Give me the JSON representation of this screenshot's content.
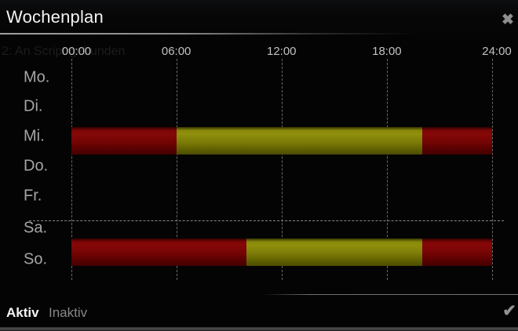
{
  "window": {
    "title": "Wochenplan",
    "close_icon": "✖"
  },
  "watermark_text": "2: An Script gebunden",
  "chart_data": {
    "type": "timeline",
    "title": "Wochenplan",
    "x_axis": {
      "tick_labels": [
        "00:00",
        "06:00",
        "12:00",
        "18:00",
        "24:00"
      ],
      "range_minutes": [
        0,
        1440
      ],
      "grid": "dashed-vertical"
    },
    "day_labels": [
      "Mo.",
      "Di.",
      "Mi.",
      "Do.",
      "Fr.",
      "Sa.",
      "So."
    ],
    "weekend_divider_after_day": "Fr.",
    "colors": {
      "red": "#860808",
      "yellow": "#90900c"
    },
    "bars": [
      {
        "day": "Mi.",
        "day_index": 2,
        "segments": [
          {
            "start": "00:00",
            "end": "06:00",
            "color": "red"
          },
          {
            "start": "06:00",
            "end": "20:00",
            "color": "yellow"
          },
          {
            "start": "20:00",
            "end": "24:00",
            "color": "red"
          }
        ]
      },
      {
        "day": "So.",
        "day_index": 6,
        "segments": [
          {
            "start": "00:00",
            "end": "10:00",
            "color": "red"
          },
          {
            "start": "10:00",
            "end": "20:00",
            "color": "yellow"
          },
          {
            "start": "20:00",
            "end": "24:00",
            "color": "red"
          }
        ]
      }
    ]
  },
  "footer": {
    "active_label": "Aktiv",
    "inactive_label": "Inaktiv",
    "confirm_icon": "✔"
  }
}
